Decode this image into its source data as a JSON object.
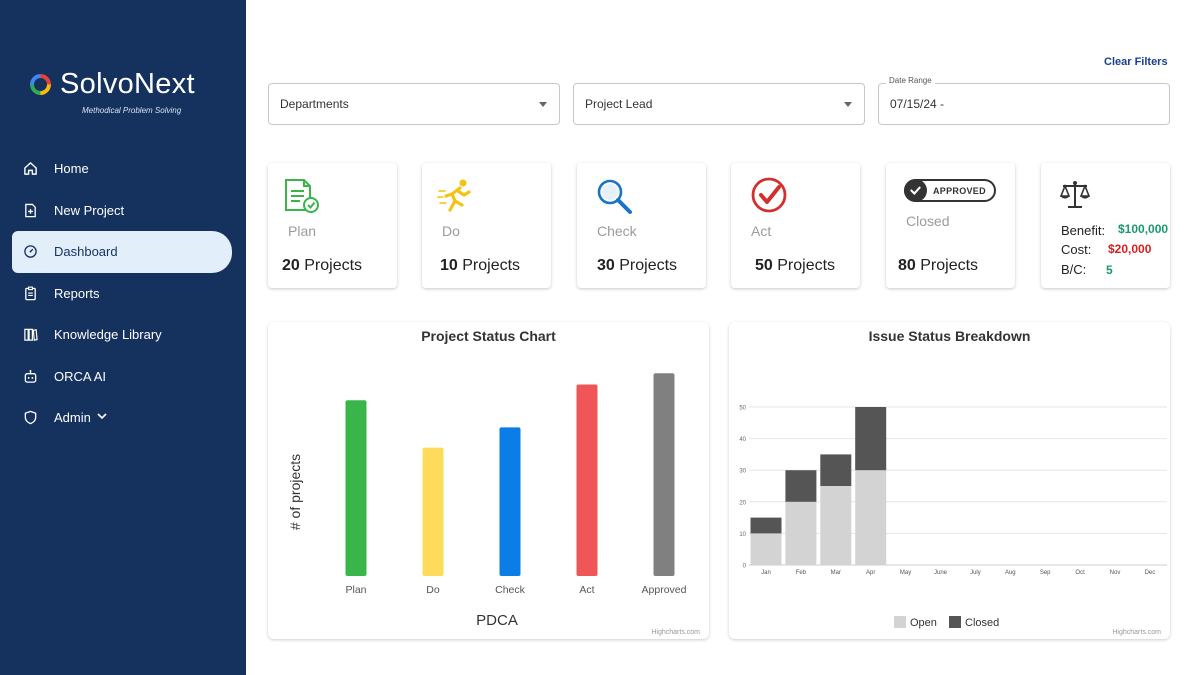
{
  "brand": {
    "name": "SolvoNext",
    "tagline": "Methodical Problem Solving"
  },
  "sidebar": {
    "items": [
      {
        "label": "Home",
        "icon": "home-icon"
      },
      {
        "label": "New Project",
        "icon": "new-document-icon"
      },
      {
        "label": "Dashboard",
        "icon": "dashboard-icon",
        "active": true
      },
      {
        "label": "Reports",
        "icon": "clipboard-icon"
      },
      {
        "label": "Knowledge Library",
        "icon": "books-icon"
      },
      {
        "label": "ORCA AI",
        "icon": "robot-icon"
      },
      {
        "label": "Admin",
        "icon": "shield-icon",
        "has_dropdown": true
      }
    ]
  },
  "filters": {
    "clear_label": "Clear Filters",
    "departments": "Departments",
    "project_lead": "Project Lead",
    "date_range_label": "Date Range",
    "date_range_value": "07/15/24 -"
  },
  "cards": {
    "plan": {
      "label": "Plan",
      "count": "20",
      "unit": "Projects"
    },
    "do": {
      "label": "Do",
      "count": "10",
      "unit": "Projects"
    },
    "check": {
      "label": "Check",
      "count": "30",
      "unit": "Projects"
    },
    "act": {
      "label": "Act",
      "count": "50",
      "unit": "Projects"
    },
    "closed": {
      "badge": "APPROVED",
      "label": "Closed",
      "count": "80",
      "unit": "Projects"
    },
    "benefit": {
      "benefit_label": "Benefit:",
      "benefit_value": "$100,000",
      "cost_label": "Cost:",
      "cost_value": "$20,000",
      "bc_label": "B/C:",
      "bc_value": "5"
    }
  },
  "colors": {
    "sidebar_bg": "#15325e",
    "plan": "#3ab54a",
    "do": "#fedb5b",
    "check": "#0a7ee6",
    "act": "#f05558",
    "approved": "#808080",
    "open": "#d3d3d3",
    "closed": "#555555",
    "benefit": "#1a9a6c",
    "cost": "#d62020"
  },
  "chart_data": [
    {
      "type": "bar",
      "title": "Project Status Chart",
      "xlabel": "PDCA",
      "ylabel": "# of projects",
      "categories": [
        "Plan",
        "Do",
        "Check",
        "Act",
        "Approved"
      ],
      "values": [
        78,
        57,
        66,
        85,
        90
      ],
      "colors": [
        "#3ab54a",
        "#fedb5b",
        "#0a7ee6",
        "#f05558",
        "#808080"
      ],
      "ylim": [
        0,
        95
      ],
      "grid": false,
      "credits": "Highcharts.com"
    },
    {
      "type": "bar",
      "stacked": true,
      "title": "Issue Status Breakdown",
      "categories": [
        "Jan",
        "Feb",
        "Mar",
        "Apr",
        "May",
        "June",
        "July",
        "Aug",
        "Sep",
        "Oct",
        "Nov",
        "Dec"
      ],
      "series": [
        {
          "name": "Open",
          "values": [
            10,
            20,
            25,
            30,
            0,
            0,
            0,
            0,
            0,
            0,
            0,
            0
          ]
        },
        {
          "name": "Closed",
          "values": [
            5,
            10,
            10,
            20,
            0,
            0,
            0,
            0,
            0,
            0,
            0,
            0
          ]
        }
      ],
      "yticks": [
        0,
        10,
        20,
        30,
        40,
        50
      ],
      "ylim": [
        0,
        50
      ],
      "grid": true,
      "legend": "bottom-center",
      "credits": "Highcharts.com"
    }
  ]
}
